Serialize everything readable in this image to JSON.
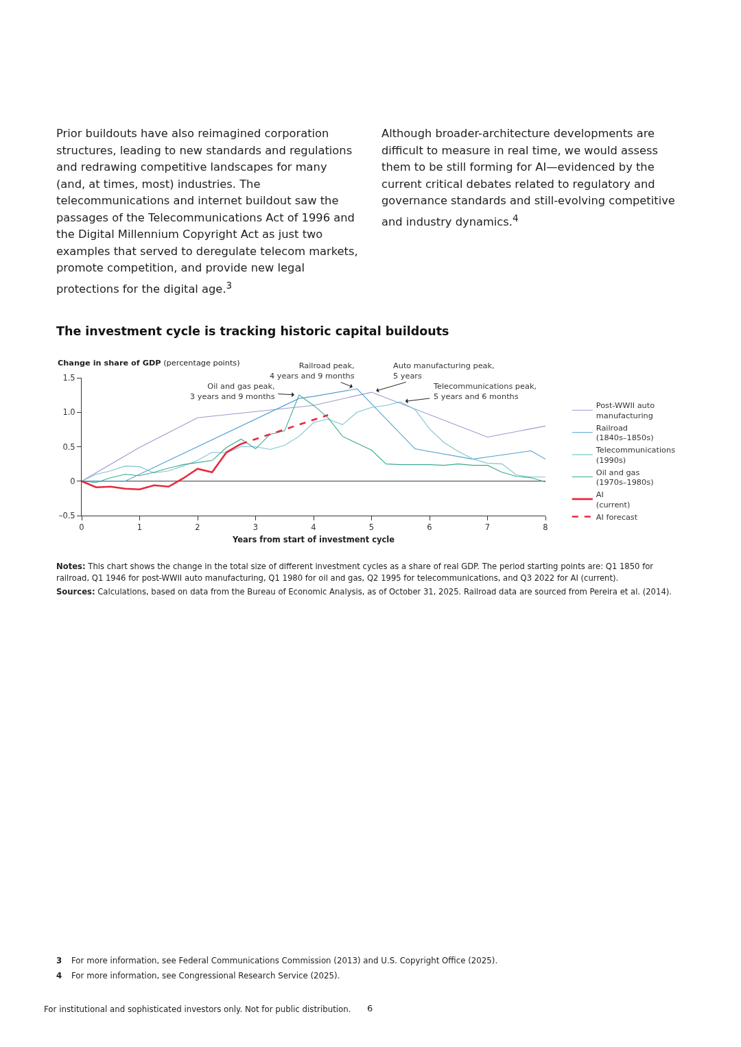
{
  "chart_data": {
    "type": "line",
    "title": "The investment cycle is tracking historic capital buildouts",
    "xlabel": "Years from start of investment cycle",
    "ylabel": "Change in share of GDP (percentage points)",
    "xlim": [
      0,
      8
    ],
    "xticks": [
      0,
      1,
      2,
      3,
      4,
      5,
      6,
      7,
      8
    ],
    "ylim": [
      -0.5,
      1.5
    ],
    "yticks": [
      {
        "value": -0.5,
        "label": "–0.5"
      },
      0,
      0.5,
      {
        "value": 1,
        "label": "1.0"
      },
      1.5
    ],
    "grid": false,
    "legend": "right",
    "marker": "none",
    "ref_lines": [
      {
        "axis": "y",
        "value": 0,
        "color": "#333333"
      }
    ],
    "series": [
      {
        "name": "Post-WWII auto manufacturing",
        "color": "#9d98d2",
        "x": [
          0,
          1,
          2,
          4,
          5,
          7,
          8
        ],
        "values": [
          0,
          0.49,
          0.92,
          1.1,
          1.29,
          0.64,
          0.8
        ]
      },
      {
        "name": "Railroad (1840s–1850s)",
        "color": "#4d9fd3",
        "x": [
          0,
          0.75,
          3.75,
          4,
          4.75,
          5.75,
          6,
          6.75,
          7,
          7.75,
          8
        ],
        "values": [
          0,
          0,
          1.2,
          1.23,
          1.34,
          0.47,
          0.43,
          0.32,
          0.35,
          0.44,
          0.32
        ]
      },
      {
        "name": "Telecommunications (1990s)",
        "color": "#7cc4d0",
        "x": [
          0,
          0.25,
          0.5,
          0.75,
          1,
          1.25,
          1.5,
          1.75,
          2,
          2.25,
          2.5,
          2.75,
          3,
          3.25,
          3.5,
          3.75,
          4,
          4.25,
          4.5,
          4.75,
          5,
          5.25,
          5.5,
          5.75,
          6,
          6.25,
          6.5,
          6.75,
          7,
          7.25,
          7.5,
          7.75,
          8
        ],
        "values": [
          0,
          0.1,
          0.15,
          0.22,
          0.21,
          0.12,
          0.15,
          0.22,
          0.3,
          0.42,
          0.41,
          0.5,
          0.5,
          0.46,
          0.52,
          0.65,
          0.85,
          0.9,
          0.82,
          1.0,
          1.07,
          1.1,
          1.15,
          1.04,
          0.76,
          0.56,
          0.43,
          0.32,
          0.26,
          0.25,
          0.09,
          0.06,
          0.06
        ]
      },
      {
        "name": "Oil and gas (1970s–1980s)",
        "color": "#3aa990",
        "x": [
          0,
          0.25,
          0.5,
          0.75,
          1,
          1.25,
          1.5,
          1.75,
          2,
          2.25,
          2.5,
          2.75,
          3,
          3.25,
          3.5,
          3.75,
          4,
          4.25,
          4.5,
          4.75,
          5,
          5.25,
          5.5,
          5.75,
          6,
          6.25,
          6.5,
          6.75,
          7,
          7.25,
          7.5,
          7.75,
          8
        ],
        "values": [
          0,
          -0.02,
          0.05,
          0.1,
          0.08,
          0.13,
          0.19,
          0.24,
          0.27,
          0.3,
          0.49,
          0.61,
          0.47,
          0.68,
          0.73,
          1.25,
          1.1,
          0.92,
          0.65,
          0.55,
          0.45,
          0.25,
          0.24,
          0.24,
          0.24,
          0.23,
          0.25,
          0.23,
          0.23,
          0.13,
          0.07,
          0.05,
          -0.01
        ]
      },
      {
        "name": "AI (current)",
        "color": "#e8283c",
        "x": [
          0,
          0.25,
          0.5,
          0.75,
          1,
          1.25,
          1.5,
          1.75,
          2,
          2.25,
          2.5,
          2.75
        ],
        "values": [
          0,
          -0.09,
          -0.08,
          -0.11,
          -0.12,
          -0.06,
          -0.08,
          0.04,
          0.18,
          0.13,
          0.42,
          0.54
        ]
      },
      {
        "name": "AI forecast",
        "color": "#e8283c",
        "line_style": "dashed",
        "x": [
          2.75,
          4.25
        ],
        "values": [
          0.54,
          0.96
        ]
      }
    ],
    "annotations": [
      "Prior buildouts have also reimagined corporation structures, leading to new standards and regulations and redrawing competitive landscapes for many (and, at times, most) industries. The telecommunications and internet buildout saw the passages of the Telecommunications Act of 1996 and the Digital Millennium Copyright Act as just two examples that served to deregulate telecom markets, promote competition, and provide new legal protections for the digital age.$^{3}$",
      "Although broader-architecture developments are difficult to measure in real time, we would assess them to be still forming for AI—evidenced by the current critical debates related to regulatory and governance standards and still-evolving competitive and industry dynamics.$^{4}$",
      {
        "text": "Oil and gas peak,\n3 years and 9 months",
        "x": 3.75,
        "y": 1.25
      },
      {
        "text": "Railroad peak,\n4 years and 9 months",
        "x": 4.75,
        "y": 1.34
      },
      {
        "text": "Auto manufacturing peak,\n5 years",
        "x": 5,
        "y": 1.29
      },
      {
        "text": "Telecommunications peak,\n5 years and 6 months",
        "x": 5.5,
        "y": 1.15
      },
      "Notes: This chart shows the change in the total size of different investment cycles as a share of real GDP. The period starting points are: Q1 1850 for railroad, Q1 1946 for post-WWII auto manufacturing, Q1 1980 for oil and gas, Q2 1995 for telecommunications, and Q3 2022 for AI (current).",
      "Sources: Calculations, based on data from the Bureau of Economic Analysis, as of October 31, 2025. Railroad data are sourced from Pereira et al. (2014).",
      "3 For more information, see Federal Communications Commission (2013) and U.S. Copyright Office (2025).",
      "4 For more information, see Congressional Research Service (2025).",
      "For institutional and sophisticated investors only. Not for public distribution.",
      "6"
    ]
  }
}
